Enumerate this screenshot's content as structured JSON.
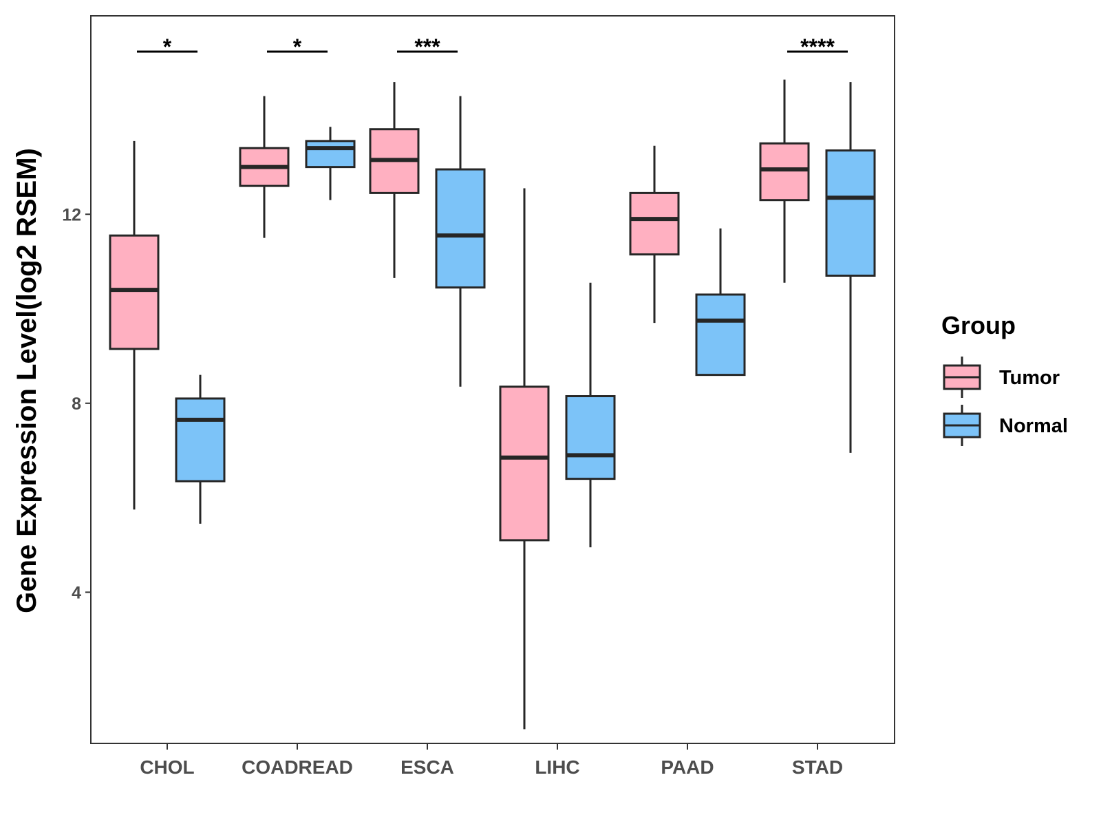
{
  "chart_data": {
    "type": "boxplot",
    "title": "",
    "xlabel": "",
    "ylabel": "Gene Expression Level(log2 RSEM)",
    "ylim": [
      0.8,
      16.2
    ],
    "yticks": [
      4,
      8,
      12
    ],
    "categories": [
      "CHOL",
      "COADREAD",
      "ESCA",
      "LIHC",
      "PAAD",
      "STAD"
    ],
    "series": [
      {
        "name": "Tumor",
        "color": "#FFB0C1",
        "boxes": [
          {
            "min": 5.75,
            "q1": 9.15,
            "median": 10.4,
            "q3": 11.55,
            "max": 13.55
          },
          {
            "min": 11.5,
            "q1": 12.6,
            "median": 13.0,
            "q3": 13.4,
            "max": 14.5
          },
          {
            "min": 10.65,
            "q1": 12.45,
            "median": 13.15,
            "q3": 13.8,
            "max": 14.8
          },
          {
            "min": 1.1,
            "q1": 5.1,
            "median": 6.85,
            "q3": 8.35,
            "max": 12.55
          },
          {
            "min": 9.7,
            "q1": 11.15,
            "median": 11.9,
            "q3": 12.45,
            "max": 13.45
          },
          {
            "min": 10.55,
            "q1": 12.3,
            "median": 12.95,
            "q3": 13.5,
            "max": 14.85
          }
        ]
      },
      {
        "name": "Normal",
        "color": "#7CC3F8",
        "boxes": [
          {
            "min": 5.45,
            "q1": 6.35,
            "median": 7.65,
            "q3": 8.1,
            "max": 8.6
          },
          {
            "min": 12.3,
            "q1": 13.0,
            "median": 13.4,
            "q3": 13.55,
            "max": 13.85
          },
          {
            "min": 8.35,
            "q1": 10.45,
            "median": 11.55,
            "q3": 12.95,
            "max": 14.5
          },
          {
            "min": 4.95,
            "q1": 6.4,
            "median": 6.9,
            "q3": 8.15,
            "max": 10.55
          },
          {
            "min": 8.6,
            "q1": 8.6,
            "median": 9.75,
            "q3": 10.3,
            "max": 11.7
          },
          {
            "min": 6.95,
            "q1": 10.7,
            "median": 12.35,
            "q3": 13.35,
            "max": 14.8
          }
        ]
      }
    ],
    "significance": [
      "*",
      "*",
      "***",
      "",
      "",
      "****"
    ],
    "legend": {
      "title": "Group",
      "position": "right"
    }
  }
}
